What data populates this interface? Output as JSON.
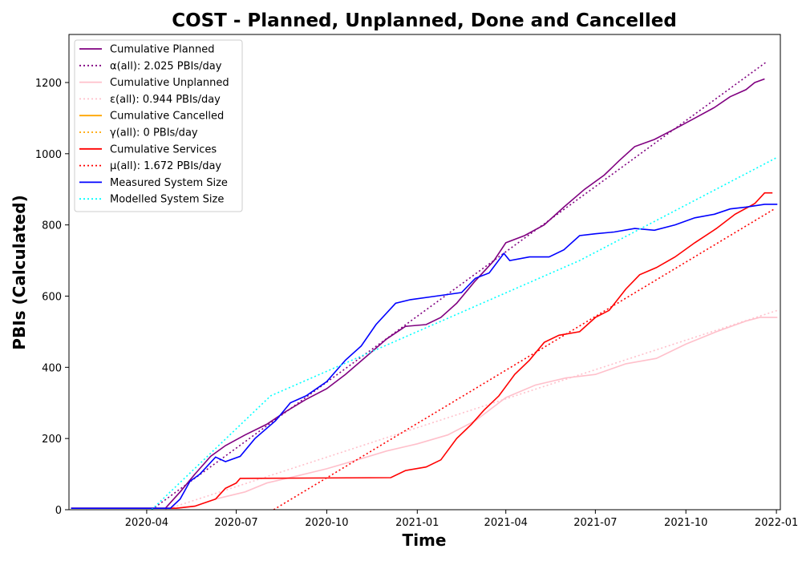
{
  "chart_data": {
    "type": "line",
    "title": "COST - Planned, Unplanned, Done  and Cancelled",
    "xlabel": "Time",
    "ylabel": "PBIs (Calculated)",
    "x_ticks": [
      "2020-04",
      "2020-07",
      "2020-10",
      "2021-01",
      "2021-04",
      "2021-07",
      "2021-10",
      "2022-01"
    ],
    "y_ticks": [
      0,
      200,
      400,
      600,
      800,
      1000,
      1200
    ],
    "xlim": [
      "2020-01-13",
      "2022-01-05"
    ],
    "ylim": [
      0,
      1335
    ],
    "legend_position": "top-left",
    "grid": false,
    "series": [
      {
        "name": "Cumulative Planned",
        "style": "solid",
        "color": "#800080",
        "points": [
          [
            "2020-01-15",
            4
          ],
          [
            "2020-04-20",
            4
          ],
          [
            "2020-05-05",
            50
          ],
          [
            "2020-05-20",
            100
          ],
          [
            "2020-06-05",
            150
          ],
          [
            "2020-06-20",
            180
          ],
          [
            "2020-07-10",
            210
          ],
          [
            "2020-08-01",
            240
          ],
          [
            "2020-08-20",
            275
          ],
          [
            "2020-09-10",
            310
          ],
          [
            "2020-10-01",
            340
          ],
          [
            "2020-10-20",
            380
          ],
          [
            "2020-11-10",
            430
          ],
          [
            "2020-12-01",
            480
          ],
          [
            "2020-12-20",
            515
          ],
          [
            "2021-01-10",
            520
          ],
          [
            "2021-01-25",
            540
          ],
          [
            "2021-02-10",
            580
          ],
          [
            "2021-02-28",
            640
          ],
          [
            "2021-03-20",
            700
          ],
          [
            "2021-04-01",
            750
          ],
          [
            "2021-04-20",
            770
          ],
          [
            "2021-05-10",
            800
          ],
          [
            "2021-05-30",
            850
          ],
          [
            "2021-06-20",
            900
          ],
          [
            "2021-07-10",
            940
          ],
          [
            "2021-07-25",
            980
          ],
          [
            "2021-08-10",
            1020
          ],
          [
            "2021-08-30",
            1040
          ],
          [
            "2021-09-20",
            1070
          ],
          [
            "2021-10-10",
            1100
          ],
          [
            "2021-10-30",
            1130
          ],
          [
            "2021-11-15",
            1160
          ],
          [
            "2021-12-01",
            1180
          ],
          [
            "2021-12-10",
            1200
          ],
          [
            "2021-12-20",
            1210
          ]
        ]
      },
      {
        "name": "α(all): 2.025 PBIs/day",
        "style": "dotted",
        "color": "#800080",
        "points": [
          [
            "2020-04-06",
            0
          ],
          [
            "2021-12-22",
            1258
          ]
        ]
      },
      {
        "name": "Cumulative Unplanned",
        "style": "solid",
        "color": "#ffc0cb",
        "points": [
          [
            "2020-01-15",
            4
          ],
          [
            "2020-05-01",
            4
          ],
          [
            "2020-05-20",
            10
          ],
          [
            "2020-06-10",
            30
          ],
          [
            "2020-07-10",
            50
          ],
          [
            "2020-08-01",
            75
          ],
          [
            "2020-09-01",
            95
          ],
          [
            "2020-10-01",
            115
          ],
          [
            "2020-11-01",
            140
          ],
          [
            "2020-12-01",
            165
          ],
          [
            "2021-01-01",
            185
          ],
          [
            "2021-02-01",
            210
          ],
          [
            "2021-03-01",
            250
          ],
          [
            "2021-04-01",
            315
          ],
          [
            "2021-05-01",
            350
          ],
          [
            "2021-06-01",
            370
          ],
          [
            "2021-07-01",
            380
          ],
          [
            "2021-08-01",
            410
          ],
          [
            "2021-09-01",
            425
          ],
          [
            "2021-10-01",
            465
          ],
          [
            "2021-11-01",
            500
          ],
          [
            "2021-12-01",
            530
          ],
          [
            "2021-12-15",
            540
          ],
          [
            "2022-01-02",
            540
          ]
        ]
      },
      {
        "name": "ε(all): 0.944 PBIs/day",
        "style": "dotted",
        "color": "#ffc0cb",
        "points": [
          [
            "2020-04-20",
            0
          ],
          [
            "2022-01-02",
            560
          ]
        ]
      },
      {
        "name": "Cumulative Cancelled",
        "style": "solid",
        "color": "#ffa500",
        "points": []
      },
      {
        "name": "γ(all): 0 PBIs/day",
        "style": "dotted",
        "color": "#ffa500",
        "points": []
      },
      {
        "name": "Cumulative Services",
        "style": "solid",
        "color": "#ff0000",
        "points": [
          [
            "2020-01-15",
            4
          ],
          [
            "2020-05-01",
            4
          ],
          [
            "2020-05-20",
            10
          ],
          [
            "2020-06-10",
            30
          ],
          [
            "2020-06-20",
            60
          ],
          [
            "2020-07-01",
            75
          ],
          [
            "2020-07-05",
            88
          ],
          [
            "2020-12-05",
            90
          ],
          [
            "2020-12-20",
            110
          ],
          [
            "2021-01-10",
            120
          ],
          [
            "2021-01-25",
            140
          ],
          [
            "2021-02-10",
            200
          ],
          [
            "2021-02-25",
            240
          ],
          [
            "2021-03-10",
            280
          ],
          [
            "2021-03-25",
            320
          ],
          [
            "2021-04-10",
            380
          ],
          [
            "2021-04-25",
            420
          ],
          [
            "2021-05-10",
            470
          ],
          [
            "2021-05-25",
            490
          ],
          [
            "2021-06-15",
            500
          ],
          [
            "2021-07-01",
            540
          ],
          [
            "2021-07-15",
            560
          ],
          [
            "2021-08-01",
            620
          ],
          [
            "2021-08-15",
            660
          ],
          [
            "2021-09-01",
            680
          ],
          [
            "2021-09-20",
            710
          ],
          [
            "2021-10-10",
            750
          ],
          [
            "2021-11-01",
            790
          ],
          [
            "2021-11-20",
            830
          ],
          [
            "2021-12-10",
            860
          ],
          [
            "2021-12-20",
            890
          ],
          [
            "2021-12-28",
            890
          ]
        ]
      },
      {
        "name": "μ(all): 1.672 PBIs/day",
        "style": "dotted",
        "color": "#ff0000",
        "points": [
          [
            "2020-08-08",
            0
          ],
          [
            "2021-12-30",
            845
          ]
        ]
      },
      {
        "name": "Measured System Size",
        "style": "solid",
        "color": "#0000ff",
        "points": [
          [
            "2020-01-15",
            4
          ],
          [
            "2020-04-25",
            4
          ],
          [
            "2020-05-05",
            30
          ],
          [
            "2020-05-15",
            80
          ],
          [
            "2020-05-25",
            100
          ],
          [
            "2020-06-10",
            148
          ],
          [
            "2020-06-20",
            135
          ],
          [
            "2020-07-05",
            150
          ],
          [
            "2020-07-20",
            200
          ],
          [
            "2020-08-10",
            250
          ],
          [
            "2020-08-25",
            300
          ],
          [
            "2020-09-10",
            320
          ],
          [
            "2020-10-01",
            360
          ],
          [
            "2020-10-20",
            420
          ],
          [
            "2020-11-05",
            460
          ],
          [
            "2020-11-20",
            520
          ],
          [
            "2020-12-10",
            580
          ],
          [
            "2020-12-25",
            590
          ],
          [
            "2021-01-20",
            600
          ],
          [
            "2021-02-15",
            610
          ],
          [
            "2021-03-01",
            650
          ],
          [
            "2021-03-15",
            665
          ],
          [
            "2021-03-30",
            720
          ],
          [
            "2021-04-05",
            700
          ],
          [
            "2021-04-25",
            710
          ],
          [
            "2021-05-15",
            710
          ],
          [
            "2021-05-30",
            730
          ],
          [
            "2021-06-15",
            770
          ],
          [
            "2021-07-01",
            775
          ],
          [
            "2021-07-20",
            780
          ],
          [
            "2021-08-10",
            790
          ],
          [
            "2021-08-30",
            785
          ],
          [
            "2021-09-20",
            800
          ],
          [
            "2021-10-10",
            820
          ],
          [
            "2021-10-30",
            830
          ],
          [
            "2021-11-15",
            845
          ],
          [
            "2021-12-01",
            850
          ],
          [
            "2021-12-20",
            858
          ],
          [
            "2022-01-02",
            858
          ]
        ]
      },
      {
        "name": "Modelled System Size",
        "style": "dotted",
        "color": "#00ffff",
        "points": [
          [
            "2020-04-06",
            0
          ],
          [
            "2020-08-05",
            320
          ],
          [
            "2021-06-15",
            700
          ],
          [
            "2022-01-02",
            990
          ]
        ]
      }
    ]
  }
}
